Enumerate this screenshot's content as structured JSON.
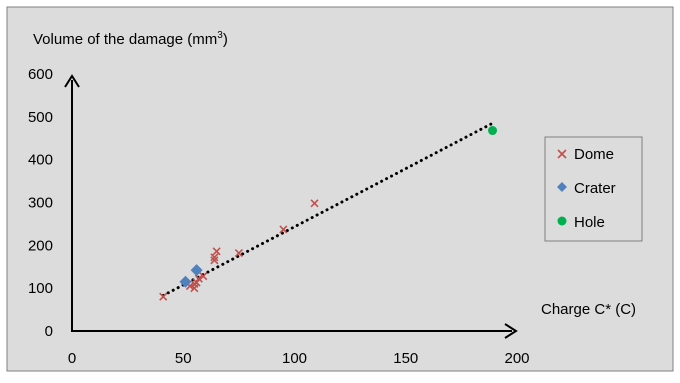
{
  "chart_data": {
    "type": "scatter",
    "ylabel": "Volume of the damage (mm",
    "ylabel_superscript": "3",
    "ylabel_suffix": ")",
    "xlabel": "Charge C* (C)",
    "xlim": [
      0,
      200
    ],
    "ylim": [
      0,
      600
    ],
    "xticks": [
      0,
      50,
      100,
      150,
      200
    ],
    "yticks": [
      0,
      100,
      200,
      300,
      400,
      500,
      600
    ],
    "grid": false,
    "background": "#dcdcdc",
    "legend_position": "right",
    "series": [
      {
        "name": "Dome",
        "marker": "x",
        "color": "#c0504d",
        "points": [
          [
            41,
            80
          ],
          [
            53,
            105
          ],
          [
            55,
            100
          ],
          [
            55,
            110
          ],
          [
            56,
            113
          ],
          [
            57,
            122
          ],
          [
            59,
            128
          ],
          [
            64,
            165
          ],
          [
            64,
            172
          ],
          [
            65,
            186
          ],
          [
            75,
            182
          ],
          [
            95,
            237
          ],
          [
            109,
            298
          ]
        ]
      },
      {
        "name": "Crater",
        "marker": "diamond",
        "color": "#4f81bd",
        "points": [
          [
            51,
            115
          ],
          [
            56,
            142
          ]
        ]
      },
      {
        "name": "Hole",
        "marker": "circle",
        "color": "#00b050",
        "points": [
          [
            189,
            468
          ]
        ]
      }
    ],
    "trendline": {
      "style": "dotted",
      "color": "#000000",
      "points": [
        [
          41,
          83
        ],
        [
          189,
          485
        ]
      ]
    }
  }
}
